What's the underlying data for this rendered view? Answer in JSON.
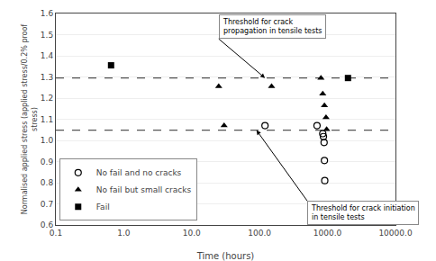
{
  "chart_data": {
    "type": "scatter",
    "xlabel": "Time (hours)",
    "ylabel": "Normalised applied stress (applied stress/0.2% proof\nstress)",
    "log": "x",
    "xlim": [
      0.1,
      10000.0
    ],
    "ylim": [
      0.6,
      1.6
    ],
    "xticks": [
      0.1,
      {
        "value": 1.0,
        "label": "1.0"
      },
      {
        "value": 10.0,
        "label": "10.0"
      },
      {
        "value": 100.0,
        "label": "100.0"
      },
      {
        "value": 1000.0,
        "label": "1000.0"
      },
      {
        "value": 10000.0,
        "label": "10000.0"
      }
    ],
    "yticks": [
      0.6,
      0.7,
      0.8,
      0.9,
      {
        "value": 1.0,
        "label": "1.0"
      },
      1.1,
      1.2,
      1.3,
      1.4,
      1.5,
      1.6
    ],
    "grid": "y",
    "legend": "lower left",
    "series": [
      {
        "name": "No fail and no cracks",
        "marker": "circle_open",
        "color": "#000000",
        "x": [
          120,
          700,
          850,
          870,
          890,
          900,
          910
        ],
        "values": [
          1.07,
          1.07,
          1.032,
          1.018,
          0.99,
          0.905,
          0.81
        ]
      },
      {
        "name": "No fail but small cracks",
        "marker": "triangle",
        "color": "#000000",
        "x": [
          25,
          30,
          150,
          800,
          850,
          900,
          950,
          970
        ],
        "values": [
          1.255,
          1.07,
          1.255,
          1.295,
          1.22,
          1.165,
          1.108,
          1.052
        ]
      },
      {
        "name": "Fail",
        "marker": "square",
        "color": "#000000",
        "x": [
          0.65,
          2000
        ],
        "values": [
          1.355,
          1.295
        ]
      }
    ],
    "hlines": [
      {
        "y": 1.295,
        "color": "#555555",
        "line_style": "dashed"
      },
      {
        "y": 1.048,
        "color": "#555555",
        "line_style": "dashed"
      }
    ],
    "annotations": [
      {
        "text": "Threshold for crack\npropagation in tensile tests",
        "x": 120,
        "y": 1.295,
        "text_x": 25,
        "text_y": 1.48
      },
      {
        "text": "Threshold for crack initiation\nin tensile tests",
        "x": 90,
        "y": 1.048,
        "text_x": 500,
        "text_y": 0.715
      }
    ]
  }
}
